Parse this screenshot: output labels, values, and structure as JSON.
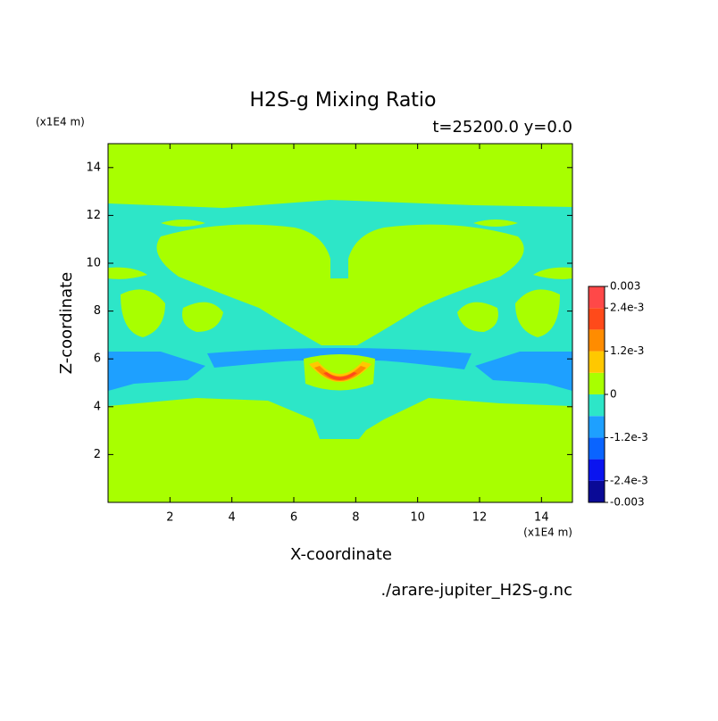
{
  "chart_data": {
    "type": "contour",
    "title": "H2S-g Mixing Ratio",
    "subtitle": "t=25200.0 y=0.0",
    "x_label": "X-coordinate",
    "y_label": "Z-coordinate",
    "x_unit": "(x1E4 m)",
    "y_unit": "(x1E4 m)",
    "source": "./arare-jupiter_H2S-g.nc",
    "xlim": [
      0,
      15
    ],
    "ylim": [
      0,
      15
    ],
    "xticks": [
      2,
      4,
      6,
      8,
      10,
      12,
      14
    ],
    "yticks": [
      2,
      4,
      6,
      8,
      10,
      12,
      14
    ],
    "colorbar": {
      "levels": [
        -0.003,
        -0.0024,
        -0.0018,
        -0.0012,
        -0.0006,
        0,
        0.0006,
        0.0012,
        0.0018,
        0.0024,
        0.003
      ],
      "colors": [
        "#0a0a96",
        "#0a14f0",
        "#0a64ff",
        "#1ea0ff",
        "#2de6c8",
        "#a8ff00",
        "#ffc800",
        "#ff8c00",
        "#ff4a1a",
        "#ff4848"
      ],
      "ticks": [
        -0.003,
        {
          "value": -0.0024,
          "label": "-2.4e-3"
        },
        {
          "value": -0.0012,
          "label": "-1.2e-3"
        },
        0,
        {
          "value": 0.0012,
          "label": "1.2e-3"
        },
        {
          "value": 0.0024,
          "label": "2.4e-3"
        },
        0.003
      ]
    }
  }
}
